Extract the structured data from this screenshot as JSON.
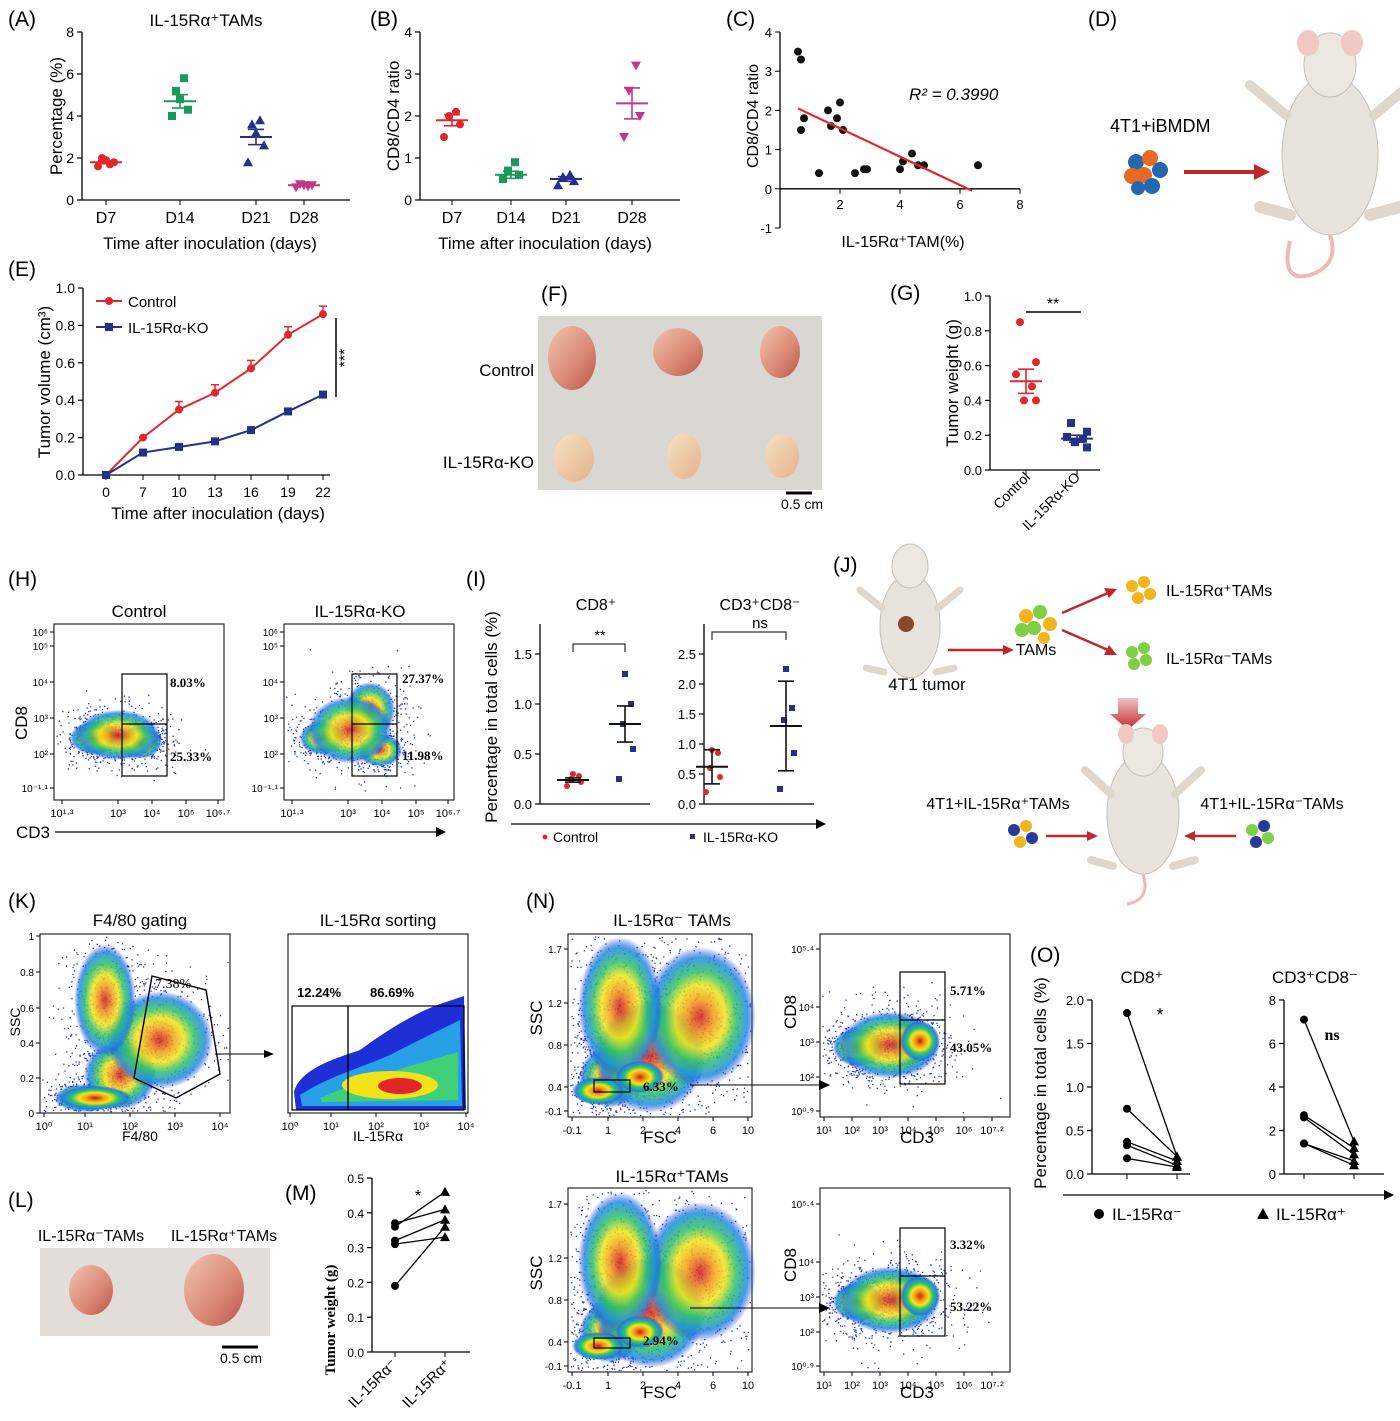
{
  "panel_letters": [
    "(A)",
    "(B)",
    "(C)",
    "(D)",
    "(E)",
    "(F)",
    "(G)",
    "(H)",
    "(I)",
    "(J)",
    "(K)",
    "(L)",
    "(M)",
    "(N)",
    "(O)"
  ],
  "A": {
    "title": "IL-15Rα⁺TAMs",
    "ylabel": "Percentage (%)",
    "xlabel": "Time after inoculation (days)",
    "categories": [
      "D7",
      "D14",
      "D21",
      "D28"
    ],
    "yticks": [
      "0",
      "2",
      "4",
      "6",
      "8"
    ]
  },
  "B": {
    "ylabel": "CD8/CD4 ratio",
    "xlabel": "Time after inoculation (days)",
    "categories": [
      "D7",
      "D14",
      "D21",
      "D28"
    ],
    "yticks": [
      "0",
      "1",
      "2",
      "3",
      "4"
    ]
  },
  "C": {
    "ylabel": "CD8/CD4 ratio",
    "xlabel": "IL-15Rα⁺TAM(%)",
    "r2": "R² = 0.3990",
    "xticks": [
      "2",
      "4",
      "6",
      "8"
    ],
    "yticks": [
      "-1",
      "0",
      "1",
      "2",
      "3",
      "4"
    ]
  },
  "D": {
    "label": "4T1+iBMDM"
  },
  "E": {
    "ylabel": "Tumor volume (cm³)",
    "xlabel": "Time after inoculation (days)",
    "legend": [
      "Control",
      "IL-15Rα-KO"
    ],
    "sig": "***",
    "xticks": [
      "0",
      "7",
      "10",
      "13",
      "16",
      "19",
      "22"
    ],
    "yticks": [
      "0.0",
      "0.2",
      "0.4",
      "0.6",
      "0.8",
      "1.0"
    ]
  },
  "F": {
    "rows": [
      "Control",
      "IL-15Rα-KO"
    ],
    "scale": "0.5 cm"
  },
  "G": {
    "ylabel": "Tumor weight (g)",
    "categories": [
      "Control",
      "IL-15Rα-KO"
    ],
    "sig": "**",
    "yticks": [
      "0.0",
      "0.2",
      "0.4",
      "0.6",
      "0.8",
      "1.0"
    ]
  },
  "H": {
    "titles": [
      "Control",
      "IL-15Rα-KO"
    ],
    "ylabel": "CD8",
    "xlabel": "CD3",
    "gates_left": [
      "8.03%",
      "25.33%"
    ],
    "gates_right": [
      "27.37%",
      "11.98%"
    ]
  },
  "I": {
    "ylabel": "Percentage in total cells (%)",
    "subtitles": [
      "CD8⁺",
      "CD3⁺CD8⁻"
    ],
    "sig": [
      "**",
      "ns"
    ],
    "legend": [
      "Control",
      "IL-15Rα-KO"
    ],
    "yticks_left": [
      "0.0",
      "0.5",
      "1.0",
      "1.5"
    ],
    "yticks_right": [
      "0.0",
      "0.5",
      "1.0",
      "1.5",
      "2.0",
      "2.5"
    ]
  },
  "J": {
    "tumor": "4T1 tumor",
    "tams": "TAMs",
    "pos": "IL-15Rα⁺TAMs",
    "neg": "IL-15Rα⁻TAMs",
    "left": "4T1+IL-15Rα⁺TAMs",
    "right": "4T1+IL-15Rα⁻TAMs"
  },
  "K": {
    "titles": [
      "F4/80 gating",
      "IL-15Rα sorting"
    ],
    "gate": "7.38%",
    "sort": [
      "12.24%",
      "86.69%"
    ],
    "ylabel": "SSC",
    "xlabel1": "F4/80",
    "xlabel2": "IL-15Rα"
  },
  "L": {
    "labels": [
      "IL-15Rα⁻TAMs",
      "IL-15Rα⁺TAMs"
    ],
    "scale": "0.5 cm"
  },
  "M": {
    "ylabel": "Tumor weight (g)",
    "sig": "*",
    "categories": [
      "IL-15Rα⁻",
      "IL-15Rα⁺"
    ],
    "yticks": [
      "0.0",
      "0.1",
      "0.2",
      "0.3",
      "0.4",
      "0.5"
    ]
  },
  "N": {
    "titles": [
      "IL-15Rα⁻ TAMs",
      "IL-15Rα⁺TAMs"
    ],
    "ssc_gate": [
      "6.33%",
      "2.94%"
    ],
    "gates_top": [
      "5.71%",
      "43.05%"
    ],
    "gates_bottom": [
      "3.32%",
      "53.22%"
    ],
    "ylabel1": "SSC",
    "xlabel1": "FSC",
    "ylabel2": "CD8",
    "xlabel2": "CD3"
  },
  "O": {
    "ylabel": "Percentage in total cells (%)",
    "subtitles": [
      "CD8⁺",
      "CD3⁺CD8⁻"
    ],
    "sig": [
      "*",
      "ns"
    ],
    "legend": [
      "IL-15Rα⁻",
      "IL-15Rα⁺"
    ],
    "yticks_left": [
      "0.0",
      "0.5",
      "1.0",
      "1.5",
      "2.0"
    ],
    "yticks_right": [
      "0",
      "2",
      "4",
      "6",
      "8"
    ]
  },
  "colors": {
    "red": "#e3262b",
    "green": "#1a9a5a",
    "navy": "#25308a",
    "magenta": "#c4358c",
    "blue": "#2a3a9a"
  },
  "chart_data": [
    {
      "type": "scatter",
      "title": "IL-15Rα⁺TAMs",
      "categories": [
        "D7",
        "D14",
        "D21",
        "D28"
      ],
      "ylabel": "Percentage (%)",
      "ylim": [
        0,
        8
      ],
      "series": [
        {
          "values": [
            [
              1.6,
              1.8,
              1.9,
              2.0,
              1.7
            ],
            [
              4.0,
              4.3,
              4.8,
              5.2,
              5.8
            ],
            [
              1.8,
              2.6,
              3.2,
              3.6,
              3.8
            ],
            [
              0.6,
              0.7,
              0.7,
              0.75,
              0.65
            ]
          ]
        }
      ],
      "means": [
        1.8,
        4.7,
        3.0,
        0.7
      ]
    },
    {
      "type": "scatter",
      "categories": [
        "D7",
        "D14",
        "D21",
        "D28"
      ],
      "ylabel": "CD8/CD4 ratio",
      "ylim": [
        0,
        4
      ],
      "series": [
        {
          "values": [
            [
              1.5,
              1.8,
              2.0,
              2.1
            ],
            [
              0.5,
              0.6,
              0.7,
              0.9
            ],
            [
              0.35,
              0.45,
              0.55,
              0.6
            ],
            [
              1.5,
              2.0,
              2.6,
              3.2
            ]
          ]
        }
      ],
      "means": [
        1.9,
        0.6,
        0.5,
        2.3
      ]
    },
    {
      "type": "scatter",
      "xlabel": "IL-15Rα⁺TAM(%)",
      "ylabel": "CD8/CD4 ratio",
      "xlim": [
        0,
        8
      ],
      "ylim": [
        -1,
        4
      ],
      "x": [
        0.6,
        0.7,
        0.8,
        0.7,
        1.3,
        1.6,
        1.7,
        1.9,
        2.0,
        2.1,
        2.5,
        2.8,
        2.9,
        4.0,
        4.1,
        4.4,
        4.6,
        4.8,
        6.6
      ],
      "y": [
        3.5,
        3.3,
        1.8,
        1.5,
        0.4,
        2.0,
        1.6,
        1.8,
        2.2,
        1.5,
        0.4,
        0.5,
        0.5,
        0.5,
        0.7,
        0.9,
        0.6,
        0.6,
        0.6
      ]
    },
    {
      "type": "line",
      "xlabel": "Time after inoculation (days)",
      "ylabel": "Tumor volume (cm³)",
      "x": [
        0,
        7,
        10,
        13,
        16,
        19,
        22
      ],
      "ylim": [
        0,
        1.0
      ],
      "series": [
        {
          "name": "Control",
          "values": [
            0.0,
            0.2,
            0.35,
            0.44,
            0.57,
            0.75,
            0.86
          ]
        },
        {
          "name": "IL-15Rα-KO",
          "values": [
            0.0,
            0.12,
            0.15,
            0.18,
            0.24,
            0.34,
            0.43
          ]
        }
      ]
    },
    {
      "type": "scatter",
      "categories": [
        "Control",
        "IL-15Rα-KO"
      ],
      "ylabel": "Tumor weight (g)",
      "ylim": [
        0,
        1.0
      ],
      "series": [
        {
          "name": "Control",
          "values": [
            0.85,
            0.62,
            0.55,
            0.48,
            0.4,
            0.4
          ]
        },
        {
          "name": "IL-15Rα-KO",
          "values": [
            0.27,
            0.22,
            0.19,
            0.18,
            0.16,
            0.13
          ]
        }
      ],
      "means": [
        0.51,
        0.18
      ]
    },
    {
      "type": "scatter",
      "title": "CD8⁺",
      "categories": [
        "Control",
        "IL-15Rα-KO"
      ],
      "ylim": [
        0,
        1.5
      ],
      "series": [
        {
          "name": "Control",
          "values": [
            0.18,
            0.22,
            0.25,
            0.28,
            0.3
          ]
        },
        {
          "name": "IL-15Rα-KO",
          "values": [
            0.25,
            0.55,
            0.8,
            1.0,
            1.3
          ]
        }
      ],
      "means": [
        0.24,
        0.8
      ]
    },
    {
      "type": "scatter",
      "title": "CD3⁺CD8⁻",
      "categories": [
        "Control",
        "IL-15Rα-KO"
      ],
      "ylim": [
        0,
        2.5
      ],
      "series": [
        {
          "name": "Control",
          "values": [
            0.2,
            0.45,
            0.6,
            0.85,
            0.9
          ]
        },
        {
          "name": "IL-15Rα-KO",
          "values": [
            0.25,
            0.85,
            1.4,
            1.6,
            2.25
          ]
        }
      ],
      "means": [
        0.62,
        1.3
      ]
    },
    {
      "type": "line",
      "ylabel": "Tumor weight (g)",
      "categories": [
        "IL-15Rα⁻",
        "IL-15Rα⁺"
      ],
      "ylim": [
        0,
        0.5
      ],
      "series": [
        {
          "values": [
            0.37,
            0.41
          ]
        },
        {
          "values": [
            0.36,
            0.46
          ]
        },
        {
          "values": [
            0.32,
            0.38
          ]
        },
        {
          "values": [
            0.31,
            0.33
          ]
        },
        {
          "values": [
            0.19,
            0.36
          ]
        }
      ]
    },
    {
      "type": "line",
      "title": "CD8⁺",
      "categories": [
        "IL-15Rα⁻",
        "IL-15Rα⁺"
      ],
      "ylim": [
        0,
        2.0
      ],
      "series": [
        {
          "values": [
            1.85,
            0.2
          ]
        },
        {
          "values": [
            0.75,
            0.2
          ]
        },
        {
          "values": [
            0.37,
            0.15
          ]
        },
        {
          "values": [
            0.33,
            0.1
          ]
        },
        {
          "values": [
            0.18,
            0.08
          ]
        }
      ]
    },
    {
      "type": "line",
      "title": "CD3⁺CD8⁻",
      "categories": [
        "IL-15Rα⁻",
        "IL-15Rα⁺"
      ],
      "ylim": [
        0,
        8
      ],
      "series": [
        {
          "values": [
            7.1,
            1.5
          ]
        },
        {
          "values": [
            2.7,
            1.2
          ]
        },
        {
          "values": [
            2.6,
            0.9
          ]
        },
        {
          "values": [
            1.4,
            0.6
          ]
        },
        {
          "values": [
            1.4,
            0.4
          ]
        }
      ]
    }
  ]
}
